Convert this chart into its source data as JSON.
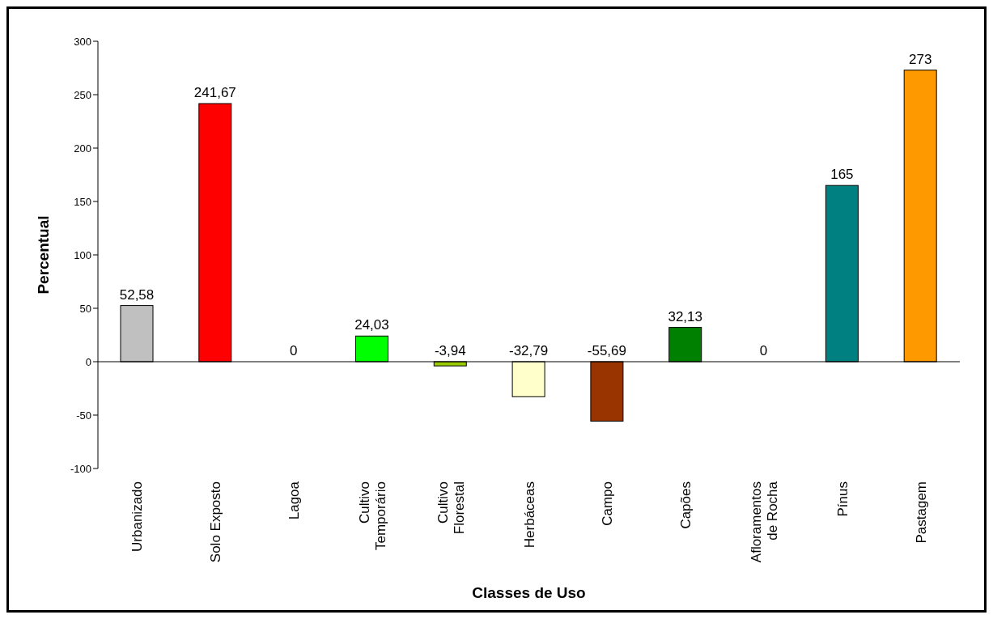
{
  "chart_data": {
    "type": "bar",
    "xlabel": "Classes de Uso",
    "ylabel": "Percentual",
    "categories": [
      "Urbanizado",
      "Solo Exposto",
      "Lagoa",
      "Cultivo\nTemporário",
      "Cultivo\nFlorestal",
      "Herbáceas",
      "Campo",
      "Capões",
      "Afloramentos\nde Rocha",
      "Pínus",
      "Pastagem"
    ],
    "values": [
      52.58,
      241.67,
      0,
      24.03,
      -3.94,
      -32.79,
      -55.69,
      32.13,
      0,
      165,
      273
    ],
    "value_labels": [
      "52,58",
      "241,67",
      "0",
      "24,03",
      "-3,94",
      "-32,79",
      "-55,69",
      "32,13",
      "0",
      "165",
      "273"
    ],
    "colors": [
      "#c0c0c0",
      "#ff0000",
      "#0000ff",
      "#00ff00",
      "#99cc00",
      "#ffffcc",
      "#993300",
      "#008000",
      "#808080",
      "#008080",
      "#ff9900"
    ],
    "ylim": [
      -100,
      300
    ],
    "yticks": [
      -100,
      -50,
      0,
      50,
      100,
      150,
      200,
      250,
      300
    ],
    "legend": false
  }
}
